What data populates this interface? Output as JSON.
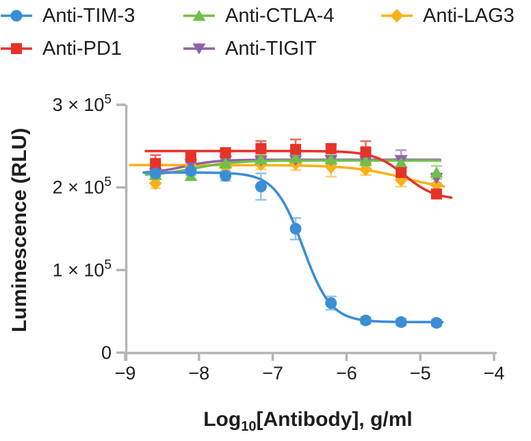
{
  "chart_data": {
    "type": "scatter",
    "subtype": "dose-response curves with error bars and 4PL fits",
    "title": "",
    "ylabel": "Luminescence (RLU)",
    "xlabel": {
      "pre": "Log",
      "sub": "10",
      "post": "[Antibody], g/ml"
    },
    "x_unit": "log10 of antibody concentration in g/ml",
    "xlim": [
      -9,
      -4
    ],
    "ylim": [
      0,
      300000
    ],
    "grid": "off",
    "axis_color": "#b5b5b5",
    "text_color": "#1e1e1e",
    "x_ticks": [
      {
        "value": -9,
        "label": "−9"
      },
      {
        "value": -8,
        "label": "−8"
      },
      {
        "value": -7,
        "label": "−7"
      },
      {
        "value": -6,
        "label": "−6"
      },
      {
        "value": -5,
        "label": "−5"
      },
      {
        "value": -4,
        "label": "−4"
      }
    ],
    "y_ticks": [
      {
        "value": 0,
        "mantissa": "0",
        "exp": ""
      },
      {
        "value": 100000,
        "mantissa": "1 × 10",
        "exp": "5"
      },
      {
        "value": 200000,
        "mantissa": "2 × 10",
        "exp": "5"
      },
      {
        "value": 300000,
        "mantissa": "3 × 10",
        "exp": "5"
      }
    ],
    "x": [
      -8.59,
      -8.11,
      -7.64,
      -7.16,
      -6.69,
      -6.21,
      -5.74,
      -5.26,
      -4.78
    ],
    "series": [
      {
        "name": "Anti-TIM-3",
        "marker": "circle",
        "color": "#3b8ed5",
        "error_color": "#93c5e8",
        "values": [
          217000,
          220000,
          214000,
          201000,
          150000,
          60000,
          39000,
          37000,
          36000
        ],
        "errors": [
          6000,
          5000,
          6000,
          16000,
          13000,
          8000,
          4000,
          4000,
          4000
        ],
        "fit": {
          "top": 218000,
          "bottom": 37000,
          "logec50": -6.59,
          "hill": 2.3
        },
        "line_range": [
          -8.75,
          -4.7
        ]
      },
      {
        "name": "Anti-PD1",
        "marker": "square",
        "color": "#e6332a",
        "error_color": "#f1695f",
        "values": [
          229000,
          237000,
          242000,
          247000,
          246000,
          247000,
          243000,
          218000,
          192000
        ],
        "errors": [
          10000,
          7000,
          5000,
          9000,
          12000,
          5000,
          13000,
          5000,
          5000
        ],
        "fit": {
          "top": 244000,
          "bottom": 185000,
          "logec50": -5.21,
          "hill": 2.1
        },
        "line_range": [
          -8.72,
          -4.58
        ]
      },
      {
        "name": "Anti-CTLA-4",
        "marker": "triangle-up",
        "color": "#70bf49",
        "error_color": "#a9d88d",
        "values": [
          215000,
          214000,
          229000,
          234000,
          236000,
          234000,
          232000,
          230000,
          218000
        ],
        "errors": [
          5000,
          5000,
          5000,
          6000,
          5000,
          5000,
          4000,
          5000,
          8000
        ],
        "fit": {
          "top": 232500,
          "bottom": 214000,
          "logec50": -8.05,
          "hill": -1.6
        },
        "line_range": [
          -8.72,
          -4.73
        ]
      },
      {
        "name": "Anti-TIGIT",
        "marker": "triangle-down",
        "color": "#9161a8",
        "error_color": "#bb97cc",
        "values": [
          217000,
          228000,
          232000,
          232000,
          233000,
          233000,
          232000,
          233000,
          211000
        ],
        "errors": [
          4000,
          5000,
          4000,
          4000,
          4000,
          4000,
          5000,
          12000,
          6000
        ],
        "fit": {
          "top": 233500,
          "bottom": 217000,
          "logec50": -8.2,
          "hill": -2.0
        },
        "line_range": [
          -8.72,
          -4.73
        ]
      },
      {
        "name": "Anti-LAG3",
        "marker": "diamond",
        "color": "#fbb117",
        "error_color": "#fdd271",
        "values": [
          205000,
          226000,
          225000,
          228000,
          229000,
          225000,
          222000,
          209000,
          203000
        ],
        "errors": [
          6000,
          5000,
          5000,
          6000,
          8000,
          12000,
          7000,
          8000,
          7000
        ],
        "fit": {
          "top": 227000,
          "bottom": 195000,
          "logec50": -5.2,
          "hill": 1.2
        },
        "line_range": [
          -8.93,
          -4.68
        ]
      }
    ],
    "legend": {
      "position": "top",
      "rows": [
        [
          "Anti-TIM-3",
          "Anti-CTLA-4",
          "Anti-LAG3"
        ],
        [
          "Anti-PD1",
          "Anti-TIGIT"
        ]
      ]
    }
  }
}
